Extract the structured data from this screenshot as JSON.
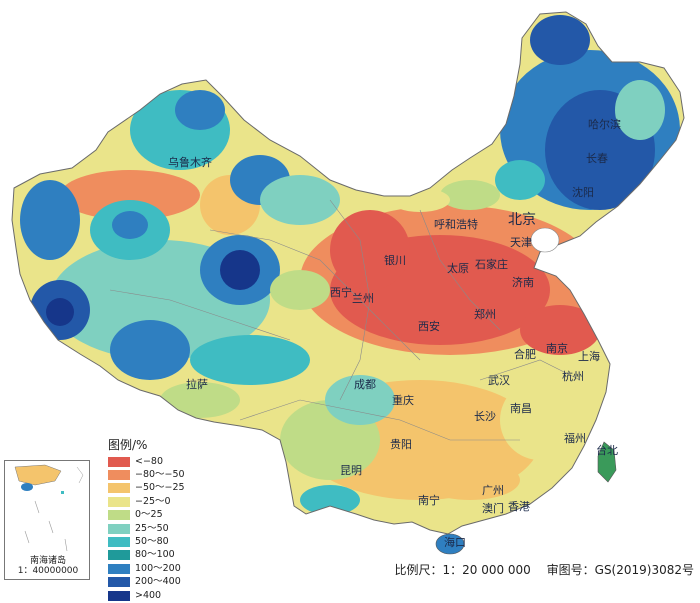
{
  "legend": {
    "title": "图例/%",
    "items": [
      {
        "label": "<−80",
        "color": "#e15a4f"
      },
      {
        "label": "−80～−50",
        "color": "#ef8d5e"
      },
      {
        "label": "−50～−25",
        "color": "#f4c46c"
      },
      {
        "label": "−25～0",
        "color": "#eae48a"
      },
      {
        "label": "0～25",
        "color": "#bfdc87"
      },
      {
        "label": "25～50",
        "color": "#7fd0c0"
      },
      {
        "label": "50～80",
        "color": "#3fbcc2"
      },
      {
        "label": "80～100",
        "color": "#1f9a9a"
      },
      {
        "label": "100～200",
        "color": "#2f7fc0"
      },
      {
        "label": "200～400",
        "color": "#2358a8"
      },
      {
        "label": ">400",
        "color": "#16368a"
      }
    ]
  },
  "cities": {
    "wulumuqi": "乌鲁木齐",
    "haerbin": "哈尔滨",
    "changchun": "长春",
    "shenyang": "沈阳",
    "huhehaote": "呼和浩特",
    "beijing": "北京",
    "tianjin": "天津",
    "shijiazhuang": "石家庄",
    "taiyuan": "太原",
    "jinan": "济南",
    "yinchuan": "银川",
    "xining": "西宁",
    "lanzhou": "兰州",
    "xian": "西安",
    "zhengzhou": "郑州",
    "nanjing": "南京",
    "shanghai": "上海",
    "hefei": "合肥",
    "wuhan": "武汉",
    "hangzhou": "杭州",
    "chengdu": "成都",
    "chongqing": "重庆",
    "lasa": "拉萨",
    "nanchang": "南昌",
    "changsha": "长沙",
    "fuzhou": "福州",
    "taibei": "台北",
    "guiyang": "贵阳",
    "kunming": "昆明",
    "nanning": "南宁",
    "guangzhou": "广州",
    "aomen": "澳门",
    "xianggang": "香港",
    "haikou": "海口"
  },
  "inset": {
    "caption_line1": "南海诸岛",
    "caption_line2": "1：40000000"
  },
  "footer": {
    "scale": "比例尺：1：20 000 000",
    "review": "审图号：GS(2019)3082号"
  }
}
